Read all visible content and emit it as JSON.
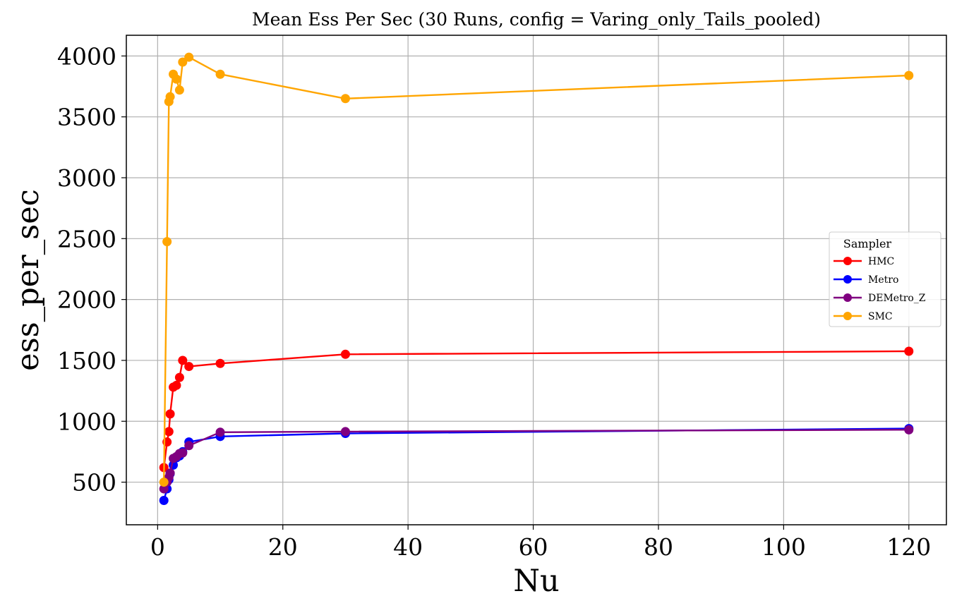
{
  "chart_data": {
    "type": "line",
    "title": "Mean Ess Per Sec (30 Runs, config = Varing_only_Tails_pooled)",
    "xlabel": "Nu",
    "ylabel": "ess_per_sec",
    "xlim": [
      -5,
      126
    ],
    "ylim": [
      150,
      4170
    ],
    "xticks": [
      0,
      20,
      40,
      60,
      80,
      100,
      120
    ],
    "yticks": [
      500,
      1000,
      1500,
      2000,
      2500,
      3000,
      3500,
      4000
    ],
    "grid": true,
    "legend": {
      "title": "Sampler",
      "placement": "center-right"
    },
    "series": [
      {
        "name": "HMC",
        "color": "#ff0000",
        "x": [
          1,
          1.5,
          1.8,
          2,
          2.5,
          3,
          3.5,
          4,
          5,
          10,
          30,
          120
        ],
        "y": [
          620,
          830,
          915,
          1060,
          1280,
          1295,
          1360,
          1500,
          1450,
          1475,
          1550,
          1575
        ]
      },
      {
        "name": "Metro",
        "color": "#0000ff",
        "x": [
          1,
          1.5,
          1.8,
          2,
          2.5,
          3,
          3.5,
          4,
          5,
          10,
          30,
          120
        ],
        "y": [
          350,
          445,
          520,
          570,
          640,
          700,
          715,
          750,
          830,
          875,
          900,
          940
        ]
      },
      {
        "name": "DEMetro_Z",
        "color": "#800080",
        "x": [
          1,
          1.5,
          1.8,
          2,
          2.5,
          3,
          3.5,
          4,
          5,
          10,
          30,
          120
        ],
        "y": [
          445,
          500,
          540,
          575,
          695,
          710,
          735,
          740,
          800,
          910,
          915,
          930
        ]
      },
      {
        "name": "SMC",
        "color": "#ffa500",
        "x": [
          1,
          1.5,
          1.8,
          2,
          2.5,
          3,
          3.5,
          4,
          5,
          10,
          30,
          120
        ],
        "y": [
          500,
          2475,
          3625,
          3665,
          3850,
          3810,
          3720,
          3950,
          3990,
          3850,
          3650,
          3840
        ]
      }
    ]
  }
}
